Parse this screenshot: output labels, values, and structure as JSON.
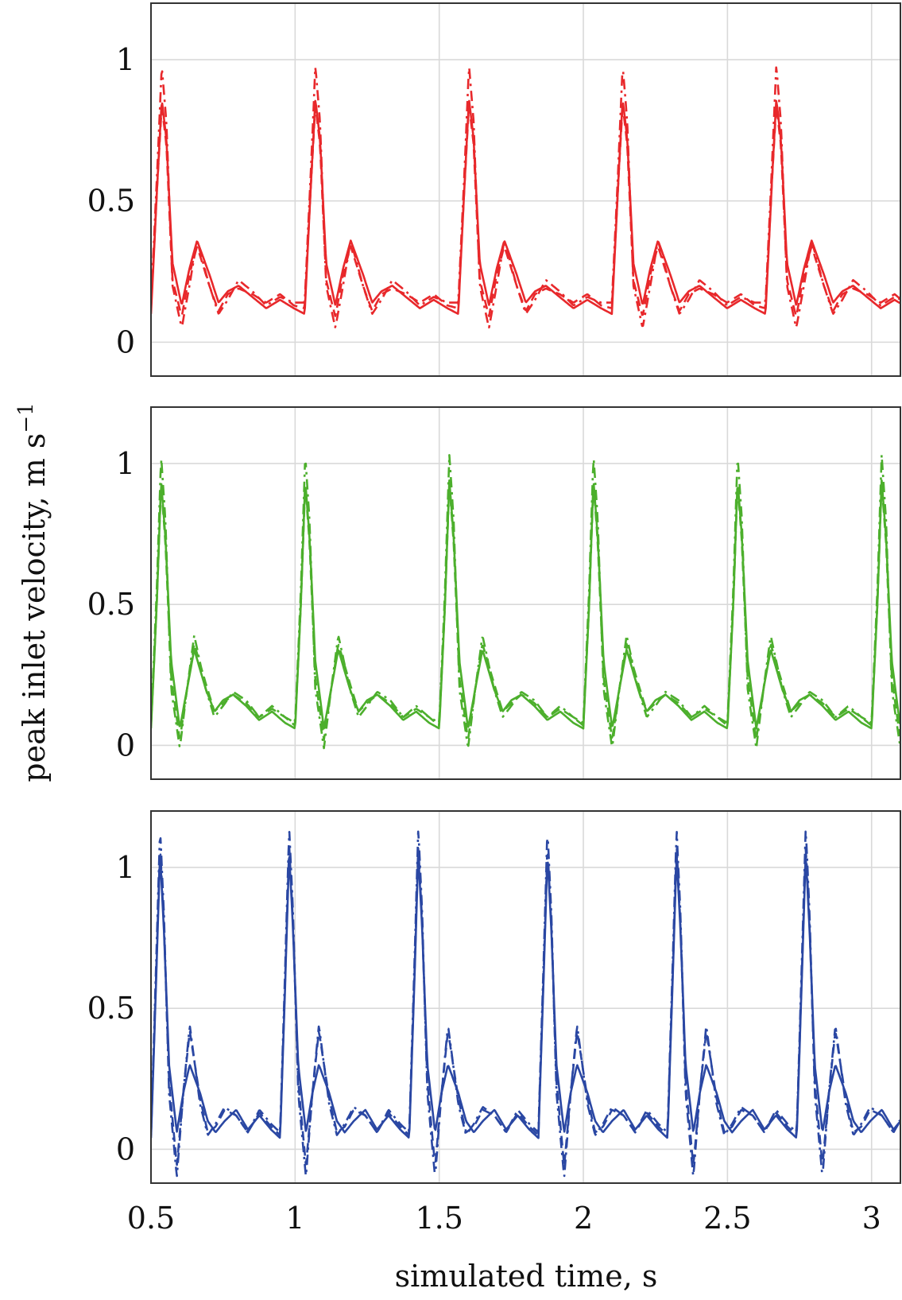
{
  "chart_data": {
    "type": "line",
    "xlabel": "simulated time, s",
    "ylabel": "peak inlet velocity, m s",
    "ylabel_exponent": "−1",
    "xlim": [
      0.5,
      3.1
    ],
    "x_ticks": [
      0.5,
      1,
      1.5,
      2,
      2.5,
      3
    ],
    "x_tick_labels": [
      "0.5",
      "1",
      "1.5",
      "2",
      "2.5",
      "3"
    ],
    "grid": true,
    "panels": [
      {
        "color": "#e8282b",
        "ylim": [
          -0.12,
          1.2
        ],
        "y_ticks": [
          0,
          0.5,
          1
        ],
        "y_tick_labels": [
          "0",
          "0.5",
          "1"
        ],
        "period": 0.533,
        "t0": 0.5,
        "series": [
          {
            "style": "solid",
            "phase": [
              0,
              0.04,
              0.07,
              0.1,
              0.14,
              0.2,
              0.25,
              0.3,
              0.38,
              0.44,
              0.5,
              0.57,
              0.66,
              0.75,
              0.84,
              0.93,
              1.0
            ],
            "values": [
              0.1,
              0.55,
              0.86,
              0.72,
              0.28,
              0.13,
              0.26,
              0.36,
              0.24,
              0.14,
              0.18,
              0.2,
              0.16,
              0.12,
              0.15,
              0.12,
              0.1
            ]
          },
          {
            "style": "dashed",
            "phase": [
              0,
              0.04,
              0.07,
              0.1,
              0.14,
              0.2,
              0.25,
              0.3,
              0.38,
              0.44,
              0.5,
              0.57,
              0.66,
              0.75,
              0.84,
              0.93,
              1.0
            ],
            "values": [
              0.12,
              0.55,
              0.84,
              0.7,
              0.22,
              0.09,
              0.24,
              0.34,
              0.2,
              0.11,
              0.17,
              0.19,
              0.17,
              0.14,
              0.17,
              0.13,
              0.12
            ]
          },
          {
            "style": "dashdot",
            "phase": [
              0,
              0.04,
              0.07,
              0.1,
              0.14,
              0.2,
              0.25,
              0.3,
              0.38,
              0.44,
              0.5,
              0.57,
              0.66,
              0.75,
              0.84,
              0.93,
              1.0
            ],
            "values": [
              0.14,
              0.6,
              0.98,
              0.78,
              0.2,
              0.05,
              0.2,
              0.36,
              0.2,
              0.1,
              0.15,
              0.22,
              0.18,
              0.13,
              0.16,
              0.14,
              0.14
            ]
          }
        ]
      },
      {
        "color": "#4caf2c",
        "ylim": [
          -0.12,
          1.2
        ],
        "y_ticks": [
          0,
          0.5,
          1
        ],
        "y_tick_labels": [
          "0",
          "0.5",
          "1"
        ],
        "period": 0.5,
        "t0": 0.5,
        "series": [
          {
            "style": "solid",
            "phase": [
              0,
              0.04,
              0.07,
              0.1,
              0.14,
              0.2,
              0.25,
              0.3,
              0.38,
              0.44,
              0.5,
              0.57,
              0.66,
              0.75,
              0.84,
              0.93,
              1.0
            ],
            "values": [
              0.06,
              0.5,
              0.94,
              0.74,
              0.3,
              0.06,
              0.2,
              0.34,
              0.2,
              0.12,
              0.16,
              0.18,
              0.14,
              0.09,
              0.12,
              0.08,
              0.06
            ]
          },
          {
            "style": "dashed",
            "phase": [
              0,
              0.04,
              0.07,
              0.1,
              0.14,
              0.2,
              0.25,
              0.3,
              0.38,
              0.44,
              0.5,
              0.57,
              0.66,
              0.75,
              0.84,
              0.93,
              1.0
            ],
            "values": [
              0.07,
              0.5,
              0.93,
              0.72,
              0.24,
              0.02,
              0.2,
              0.36,
              0.22,
              0.12,
              0.15,
              0.18,
              0.15,
              0.1,
              0.13,
              0.1,
              0.07
            ]
          },
          {
            "style": "dashdot",
            "phase": [
              0,
              0.04,
              0.07,
              0.1,
              0.14,
              0.2,
              0.25,
              0.3,
              0.38,
              0.44,
              0.5,
              0.57,
              0.66,
              0.75,
              0.84,
              0.93,
              1.0
            ],
            "values": [
              0.08,
              0.55,
              1.03,
              0.8,
              0.2,
              -0.01,
              0.2,
              0.39,
              0.2,
              0.1,
              0.14,
              0.19,
              0.16,
              0.1,
              0.14,
              0.1,
              0.08
            ]
          }
        ]
      },
      {
        "color": "#2a47a3",
        "ylim": [
          -0.12,
          1.2
        ],
        "y_ticks": [
          0,
          0.5,
          1
        ],
        "y_tick_labels": [
          "0",
          "0.5",
          "1"
        ],
        "period": 0.448,
        "t0": 0.5,
        "series": [
          {
            "style": "solid",
            "phase": [
              0,
              0.04,
              0.07,
              0.1,
              0.14,
              0.2,
              0.25,
              0.3,
              0.38,
              0.44,
              0.5,
              0.57,
              0.66,
              0.75,
              0.84,
              0.93,
              1.0
            ],
            "values": [
              0.04,
              0.6,
              1.05,
              0.78,
              0.3,
              0.06,
              0.2,
              0.3,
              0.2,
              0.1,
              0.06,
              0.1,
              0.14,
              0.07,
              0.12,
              0.07,
              0.04
            ]
          },
          {
            "style": "dashed",
            "phase": [
              0,
              0.04,
              0.07,
              0.1,
              0.14,
              0.2,
              0.25,
              0.3,
              0.38,
              0.44,
              0.5,
              0.57,
              0.66,
              0.75,
              0.84,
              0.93,
              1.0
            ],
            "values": [
              0.05,
              0.62,
              1.08,
              0.8,
              0.24,
              -0.06,
              0.2,
              0.42,
              0.18,
              0.06,
              0.08,
              0.14,
              0.12,
              0.06,
              0.13,
              0.08,
              0.05
            ]
          },
          {
            "style": "dashdot",
            "phase": [
              0,
              0.04,
              0.07,
              0.1,
              0.14,
              0.2,
              0.25,
              0.3,
              0.38,
              0.44,
              0.5,
              0.57,
              0.66,
              0.75,
              0.84,
              0.93,
              1.0
            ],
            "values": [
              0.06,
              0.66,
              1.14,
              0.84,
              0.2,
              -0.1,
              0.2,
              0.44,
              0.16,
              0.05,
              0.09,
              0.15,
              0.12,
              0.06,
              0.14,
              0.09,
              0.06
            ]
          }
        ]
      }
    ]
  }
}
